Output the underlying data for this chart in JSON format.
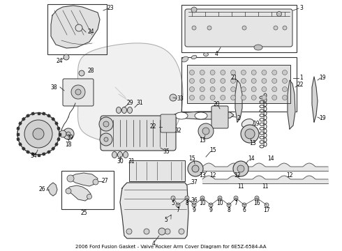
{
  "title": "2006 Ford Fusion Gasket - Valve Rocker Arm Cover Diagram for 6E5Z-6584-AA",
  "bg_color": "#ffffff",
  "line_color": "#333333",
  "text_color": "#000000",
  "fig_width": 4.9,
  "fig_height": 3.6,
  "dpi": 100
}
